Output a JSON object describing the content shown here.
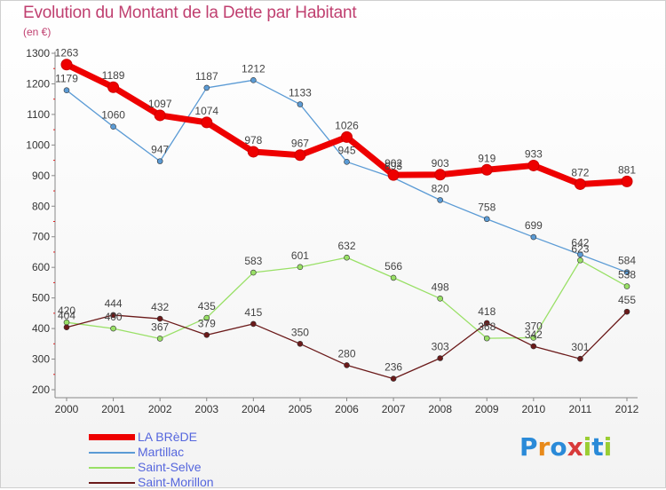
{
  "title": "Evolution du Montant de la Dette par Habitant",
  "unit": "(en €)",
  "logo": "Proxiti",
  "chart_data": {
    "type": "line",
    "x": [
      "2000",
      "2001",
      "2002",
      "2003",
      "2004",
      "2005",
      "2006",
      "2007",
      "2008",
      "2009",
      "2010",
      "2011",
      "2012"
    ],
    "ylim": [
      200,
      1300
    ],
    "yticks": [
      200,
      300,
      400,
      500,
      600,
      700,
      800,
      900,
      1000,
      1100,
      1200,
      1300
    ],
    "grid": false,
    "legend": "bottom-left",
    "series": [
      {
        "name": "LA BRèDE",
        "color": "#ee0000",
        "width": 7,
        "marker": 6,
        "values": [
          1263,
          1189,
          1097,
          1074,
          978,
          967,
          1026,
          902,
          903,
          919,
          933,
          872,
          881
        ]
      },
      {
        "name": "Martillac",
        "color": "#5b9bd5",
        "width": 1.3,
        "marker": 3,
        "values": [
          1179,
          1060,
          947,
          1187,
          1212,
          1133,
          945,
          893,
          820,
          758,
          699,
          642,
          584
        ]
      },
      {
        "name": "Saint-Selve",
        "color": "#99e066",
        "width": 1.3,
        "marker": 3,
        "values": [
          420,
          400,
          367,
          435,
          583,
          601,
          632,
          566,
          498,
          368,
          370,
          623,
          538
        ]
      },
      {
        "name": "Saint-Morillon",
        "color": "#6b1a1a",
        "width": 1.3,
        "marker": 3,
        "values": [
          404,
          444,
          432,
          379,
          415,
          350,
          280,
          236,
          303,
          418,
          342,
          301,
          455
        ]
      }
    ]
  }
}
